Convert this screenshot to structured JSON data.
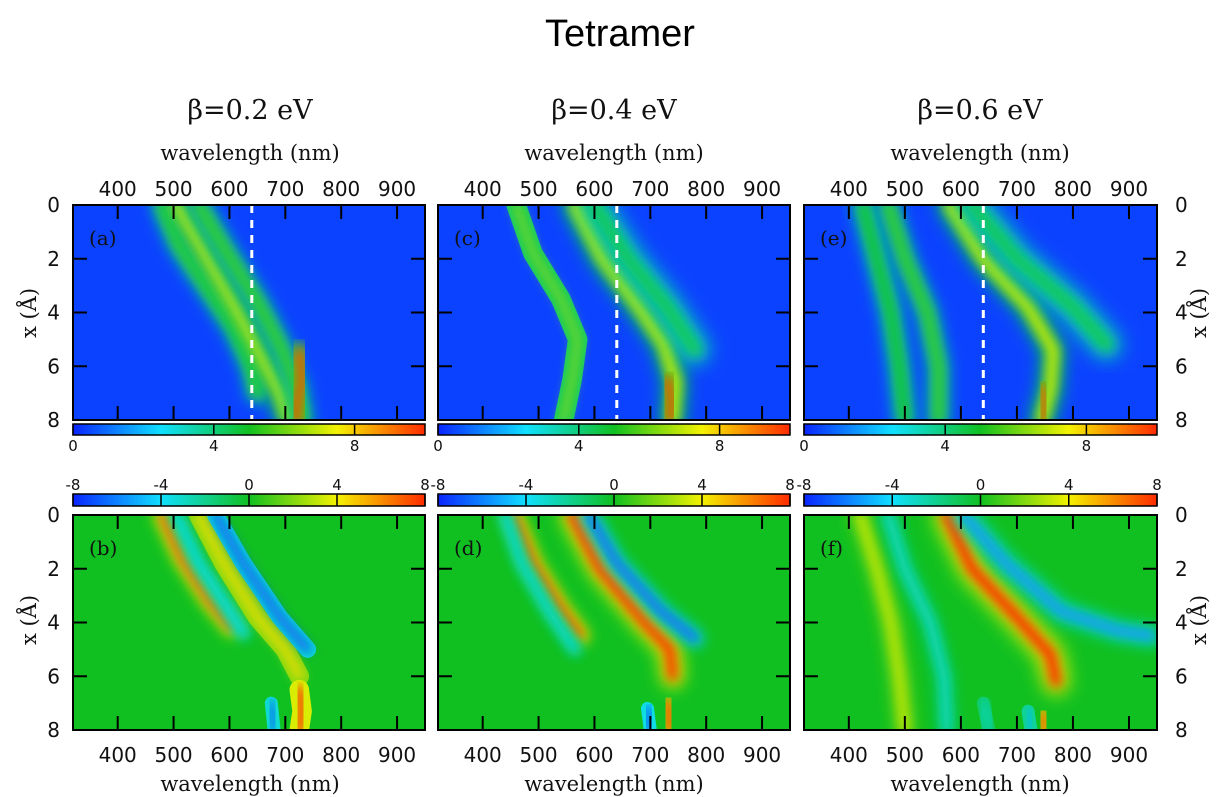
{
  "title": "Tetramer",
  "column_titles": [
    "β=0.2 eV",
    "β=0.4 eV",
    "β=0.6 eV"
  ],
  "xlabel": "wavelength (nm)",
  "ylabel": "x (Å)",
  "chart_data": {
    "type": "heatmap",
    "title": "Tetramer",
    "xlabel": "wavelength (nm)",
    "ylabel": "x (Å)",
    "xlim": [
      320,
      950
    ],
    "ylim": [
      8,
      0
    ],
    "xticks": [
      400,
      500,
      600,
      700,
      800,
      900
    ],
    "yticks": [
      0,
      2,
      4,
      6,
      8
    ],
    "dashed_line_x": 640,
    "colormap": [
      "#0a24ff",
      "#10e0ff",
      "#10c020",
      "#f4f200",
      "#ff2a00"
    ],
    "colorbar_top": {
      "range": [
        0,
        10
      ],
      "ticks": [
        0,
        4,
        8
      ]
    },
    "colorbar_bottom": {
      "range": [
        -8,
        8
      ],
      "ticks": [
        -8,
        -4,
        0,
        4,
        8
      ]
    },
    "panels": [
      {
        "label": "(a)",
        "beta": "β=0.2 eV",
        "kind": "absorption",
        "dashed": true,
        "bands": [
          {
            "points": [
              [
                480,
                0
              ],
              [
                510,
                1.5
              ],
              [
                565,
                3.2
              ],
              [
                610,
                4.6
              ],
              [
                640,
                6.0
              ],
              [
                650,
                7.0
              ]
            ],
            "amp": 0.35,
            "width": 16
          },
          {
            "points": [
              [
                505,
                0
              ],
              [
                560,
                2.0
              ],
              [
                615,
                4.0
              ],
              [
                660,
                5.8
              ],
              [
                690,
                7.0
              ],
              [
                705,
                8.0
              ]
            ],
            "amp": 0.55,
            "width": 18
          },
          {
            "points": [
              [
                545,
                0
              ],
              [
                590,
                1.6
              ],
              [
                650,
                3.6
              ],
              [
                695,
                5.4
              ],
              [
                720,
                6.8
              ],
              [
                730,
                8.0
              ]
            ],
            "amp": 0.35,
            "width": 16
          },
          {
            "points": [
              [
                725,
                5.5
              ],
              [
                730,
                6.5
              ],
              [
                720,
                7.5
              ],
              [
                720,
                8.0
              ]
            ],
            "amp": 0.95,
            "width": 16
          }
        ]
      },
      {
        "label": "(c)",
        "beta": "β=0.4 eV",
        "kind": "absorption",
        "dashed": true,
        "bands": [
          {
            "points": [
              [
                460,
                0
              ],
              [
                490,
                1.8
              ],
              [
                540,
                3.5
              ],
              [
                570,
                5.0
              ],
              [
                560,
                6.5
              ],
              [
                545,
                8.0
              ]
            ],
            "amp": 0.45,
            "width": 15
          },
          {
            "points": [
              [
                565,
                0
              ],
              [
                615,
                2.0
              ],
              [
                680,
                3.8
              ],
              [
                725,
                5.2
              ],
              [
                745,
                6.6
              ],
              [
                740,
                8.0
              ]
            ],
            "amp": 0.6,
            "width": 18
          },
          {
            "points": [
              [
                730,
                6.5
              ],
              [
                738,
                7.3
              ],
              [
                735,
                8.0
              ]
            ],
            "amp": 0.95,
            "width": 16
          },
          {
            "points": [
              [
                600,
                0
              ],
              [
                660,
                2.0
              ],
              [
                730,
                3.8
              ],
              [
                780,
                5.4
              ]
            ],
            "amp": 0.2,
            "width": 22
          }
        ]
      },
      {
        "label": "(e)",
        "beta": "β=0.6 eV",
        "kind": "absorption",
        "dashed": true,
        "bands": [
          {
            "points": [
              [
                425,
                0
              ],
              [
                450,
                2.0
              ],
              [
                475,
                4.0
              ],
              [
                490,
                6.0
              ],
              [
                500,
                8.0
              ]
            ],
            "amp": 0.3,
            "width": 16
          },
          {
            "points": [
              [
                470,
                0
              ],
              [
                500,
                2.0
              ],
              [
                540,
                4.0
              ],
              [
                560,
                6.0
              ],
              [
                560,
                8.0
              ]
            ],
            "amp": 0.35,
            "width": 16
          },
          {
            "points": [
              [
                580,
                0
              ],
              [
                640,
                2.0
              ],
              [
                720,
                3.8
              ],
              [
                765,
                5.4
              ],
              [
                760,
                6.8
              ],
              [
                745,
                8.0
              ]
            ],
            "amp": 0.6,
            "width": 18
          },
          {
            "points": [
              [
                745,
                6.8
              ],
              [
                750,
                7.5
              ],
              [
                745,
                8.0
              ]
            ],
            "amp": 0.9,
            "width": 16
          },
          {
            "points": [
              [
                620,
                0
              ],
              [
                700,
                2.0
              ],
              [
                800,
                3.8
              ],
              [
                860,
                5.2
              ]
            ],
            "amp": 0.2,
            "width": 22
          }
        ]
      },
      {
        "label": "(b)",
        "beta": "β=0.2 eV",
        "kind": "difference",
        "dashed": false,
        "bands": [
          {
            "points": [
              [
                480,
                0
              ],
              [
                515,
                1.6
              ],
              [
                565,
                3.2
              ],
              [
                605,
                4.2
              ]
            ],
            "amp": 0.9,
            "width": 14
          },
          {
            "points": [
              [
                505,
                0
              ],
              [
                545,
                1.8
              ],
              [
                595,
                3.4
              ],
              [
                625,
                4.4
              ]
            ],
            "amp": -0.5,
            "width": 12
          },
          {
            "points": [
              [
                545,
                0
              ],
              [
                590,
                1.8
              ],
              [
                650,
                3.8
              ],
              [
                700,
                5.0
              ],
              [
                725,
                6.0
              ]
            ],
            "amp": 0.55,
            "width": 15
          },
          {
            "points": [
              [
                575,
                0
              ],
              [
                625,
                1.8
              ],
              [
                690,
                3.8
              ],
              [
                740,
                5.0
              ]
            ],
            "amp": -0.9,
            "width": 13
          },
          {
            "points": [
              [
                725,
                6.5
              ],
              [
                730,
                7.3
              ],
              [
                725,
                8.0
              ]
            ],
            "amp": 1.0,
            "width": 15
          },
          {
            "points": [
              [
                675,
                7.0
              ],
              [
                680,
                8.0
              ]
            ],
            "amp": -0.9,
            "width": 10
          }
        ]
      },
      {
        "label": "(d)",
        "beta": "β=0.4 eV",
        "kind": "difference",
        "dashed": false,
        "bands": [
          {
            "points": [
              [
                455,
                0
              ],
              [
                490,
                1.8
              ],
              [
                540,
                3.5
              ],
              [
                575,
                4.5
              ]
            ],
            "amp": 0.95,
            "width": 14
          },
          {
            "points": [
              [
                440,
                0
              ],
              [
                470,
                1.8
              ],
              [
                520,
                3.6
              ],
              [
                565,
                5.0
              ]
            ],
            "amp": -0.45,
            "width": 12
          },
          {
            "points": [
              [
                560,
                0
              ],
              [
                610,
                2.0
              ],
              [
                690,
                4.0
              ],
              [
                735,
                5.0
              ],
              [
                740,
                6.0
              ]
            ],
            "amp": 1.0,
            "width": 18
          },
          {
            "points": [
              [
                590,
                0
              ],
              [
                640,
                1.8
              ],
              [
                720,
                3.6
              ],
              [
                780,
                4.6
              ]
            ],
            "amp": -0.85,
            "width": 14
          },
          {
            "points": [
              [
                730,
                7.0
              ],
              [
                735,
                7.5
              ],
              [
                735,
                8.0
              ]
            ],
            "amp": 1.0,
            "width": 14
          },
          {
            "points": [
              [
                695,
                7.2
              ],
              [
                700,
                8.0
              ]
            ],
            "amp": -1.0,
            "width": 10
          }
        ]
      },
      {
        "label": "(f)",
        "beta": "β=0.6 eV",
        "kind": "difference",
        "dashed": false,
        "bands": [
          {
            "points": [
              [
                420,
                0
              ],
              [
                450,
                2.0
              ],
              [
                475,
                4.0
              ],
              [
                490,
                6.0
              ],
              [
                500,
                8.0
              ]
            ],
            "amp": 0.4,
            "width": 16
          },
          {
            "points": [
              [
                470,
                0
              ],
              [
                500,
                2.0
              ],
              [
                545,
                4.0
              ],
              [
                570,
                6.0
              ],
              [
                575,
                8.0
              ]
            ],
            "amp": -0.4,
            "width": 14
          },
          {
            "points": [
              [
                575,
                0
              ],
              [
                620,
                2.0
              ],
              [
                700,
                3.8
              ],
              [
                760,
                5.2
              ],
              [
                770,
                6.2
              ]
            ],
            "amp": 1.0,
            "width": 20
          },
          {
            "points": [
              [
                605,
                0
              ],
              [
                680,
                1.8
              ],
              [
                780,
                3.6
              ],
              [
                880,
                4.3
              ],
              [
                940,
                4.5
              ]
            ],
            "amp": -0.7,
            "width": 16
          },
          {
            "points": [
              [
                745,
                7.4
              ],
              [
                750,
                8.0
              ]
            ],
            "amp": 1.0,
            "width": 12
          },
          {
            "points": [
              [
                720,
                7.3
              ],
              [
                725,
                8.0
              ]
            ],
            "amp": -0.6,
            "width": 10
          },
          {
            "points": [
              [
                640,
                7.0
              ],
              [
                650,
                8.0
              ]
            ],
            "amp": -0.4,
            "width": 10
          }
        ]
      }
    ]
  }
}
